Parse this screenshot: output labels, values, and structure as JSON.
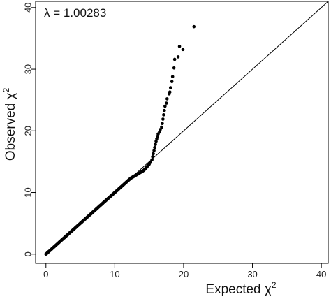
{
  "chart_data": {
    "type": "scatter",
    "xlabel": "Expected χ",
    "xlabel_sup": "2",
    "ylabel": "Observed χ",
    "ylabel_sup": "2",
    "annotation": "λ = 1.00283",
    "annotation_position": "top-left",
    "xlim": [
      -1.5,
      41
    ],
    "ylim": [
      -1.5,
      41
    ],
    "x_ticks": [
      0,
      10,
      20,
      30,
      40
    ],
    "y_ticks": [
      0,
      10,
      20,
      30,
      40
    ],
    "x_tick_labels": [
      "0",
      "10",
      "20",
      "30",
      "40"
    ],
    "y_tick_labels": [
      "0",
      "10",
      "20",
      "30",
      "40"
    ],
    "reference_line": {
      "type": "identity",
      "from": 0,
      "to": 41
    },
    "grid": false,
    "legend": "none",
    "point_color": "#000000",
    "line_color": "#000000",
    "series": [
      {
        "x": [
          0.0,
          0.3,
          0.6,
          0.9,
          1.2,
          1.5,
          1.8,
          2.1,
          2.4,
          2.7,
          3.0,
          3.3,
          3.6,
          3.9,
          4.2,
          4.5,
          4.8,
          5.1,
          5.4,
          5.7,
          6.0,
          6.3,
          6.6,
          6.9,
          7.2,
          7.5,
          7.8,
          8.1,
          8.4,
          8.7,
          9.0,
          9.3,
          9.6,
          9.9,
          10.2,
          10.5,
          10.8,
          11.1,
          11.4,
          11.7,
          12.0,
          12.3,
          12.6,
          12.9,
          13.2,
          13.5,
          13.8,
          14.1,
          14.4,
          14.7,
          15.0,
          15.2,
          15.4,
          15.5,
          15.6,
          15.7,
          15.8,
          15.9,
          16.0,
          16.1,
          16.2,
          16.3,
          16.5,
          16.6,
          16.8,
          16.9,
          17.0,
          17.1,
          17.2,
          17.3,
          17.5,
          17.6,
          17.9,
          18.0,
          18.1,
          18.3,
          18.4,
          18.6,
          18.7,
          19.2,
          19.4,
          19.9,
          21.5
        ],
        "y": [
          0.0,
          0.3,
          0.6,
          0.9,
          1.2,
          1.5,
          1.8,
          2.1,
          2.4,
          2.7,
          3.0,
          3.3,
          3.6,
          3.9,
          4.2,
          4.5,
          4.8,
          5.1,
          5.4,
          5.7,
          6.0,
          6.3,
          6.6,
          6.9,
          7.2,
          7.5,
          7.8,
          8.1,
          8.4,
          8.7,
          9.0,
          9.3,
          9.6,
          9.9,
          10.2,
          10.5,
          10.8,
          11.1,
          11.4,
          11.7,
          12.0,
          12.3,
          12.5,
          12.7,
          12.9,
          13.1,
          13.3,
          13.5,
          13.8,
          14.2,
          14.6,
          14.9,
          15.3,
          15.8,
          16.3,
          16.8,
          17.3,
          17.8,
          18.3,
          18.7,
          19.1,
          19.5,
          19.8,
          20.2,
          20.6,
          21.2,
          21.9,
          22.6,
          23.3,
          24.0,
          24.5,
          25.2,
          26.0,
          26.3,
          27.0,
          28.0,
          28.8,
          30.2,
          31.6,
          32.0,
          33.7,
          33.2,
          36.9
        ]
      }
    ]
  }
}
